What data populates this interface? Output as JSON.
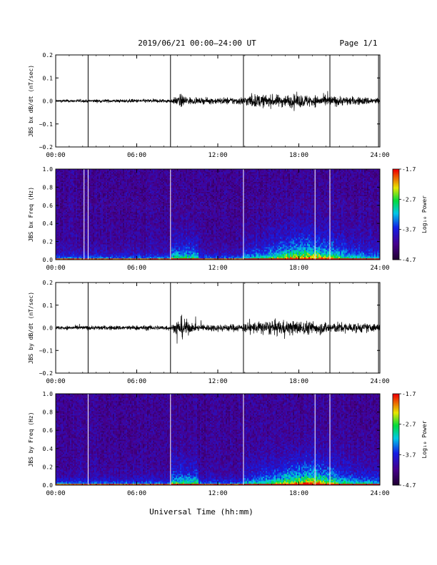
{
  "header": {
    "date_range": "2019/06/21  00:00–24:00 UT",
    "page": "Page 1/1"
  },
  "chart_data": [
    {
      "type": "line",
      "ylabel": "JBS bx dB/dt (nT/sec)",
      "xlim": [
        0,
        24
      ],
      "ylim": [
        -0.2,
        0.2
      ],
      "x_tick_labels": [
        "00:00",
        "06:00",
        "12:00",
        "18:00",
        "24:00"
      ],
      "y_tick_labels": [
        "0.2",
        "0.1",
        "0.0",
        "−0.1",
        "−0.2"
      ],
      "spikes_hours": [
        2.4,
        8.5,
        13.9,
        20.3,
        23.9
      ],
      "spike_range": [
        -0.2,
        0.2
      ],
      "activity": [
        [
          0,
          0.004
        ],
        [
          8.6,
          0.006
        ],
        [
          9.2,
          0.02
        ],
        [
          10.3,
          0.008
        ],
        [
          13.8,
          0.012
        ],
        [
          14.5,
          0.02
        ],
        [
          16,
          0.018
        ],
        [
          18,
          0.02
        ],
        [
          20,
          0.016
        ],
        [
          24,
          0.01
        ]
      ]
    },
    {
      "type": "heatmap",
      "ylabel": "JBS bx Freq (Hz)",
      "xlim": [
        0,
        24
      ],
      "ylim": [
        0,
        1.0
      ],
      "x_tick_labels": [
        "00:00",
        "06:00",
        "12:00",
        "18:00",
        "24:00"
      ],
      "y_tick_labels": [
        "1.0",
        "0.8",
        "0.6",
        "0.4",
        "0.2",
        "0.0"
      ],
      "colorbar": {
        "label": "Log₁₀ Power",
        "range": [
          -4.7,
          -1.7
        ],
        "tick_labels": [
          "-1.7",
          "-2.7",
          "-3.7",
          "-4.7"
        ]
      },
      "white_lines_hours": [
        2.1,
        2.4,
        8.5,
        13.9,
        19.2,
        20.3
      ]
    },
    {
      "type": "line",
      "ylabel": "JBS by dB/dt (nT/sec)",
      "xlim": [
        0,
        24
      ],
      "ylim": [
        -0.2,
        0.2
      ],
      "x_tick_labels": [
        "00:00",
        "06:00",
        "12:00",
        "18:00",
        "24:00"
      ],
      "y_tick_labels": [
        "0.2",
        "0.1",
        "0.0",
        "−0.1",
        "−0.2"
      ],
      "spikes_hours": [
        2.4,
        8.5,
        13.9,
        20.3,
        23.9
      ],
      "spike_range": [
        -0.2,
        0.2
      ],
      "activity": [
        [
          0,
          0.006
        ],
        [
          8.6,
          0.008
        ],
        [
          9.3,
          0.035
        ],
        [
          10.2,
          0.01
        ],
        [
          13.8,
          0.012
        ],
        [
          14.5,
          0.018
        ],
        [
          16,
          0.022
        ],
        [
          18,
          0.022
        ],
        [
          20,
          0.018
        ],
        [
          24,
          0.012
        ]
      ]
    },
    {
      "type": "heatmap",
      "ylabel": "JBS by Freq (Hz)",
      "xlim": [
        0,
        24
      ],
      "ylim": [
        0,
        1.0
      ],
      "x_tick_labels": [
        "00:00",
        "06:00",
        "12:00",
        "18:00",
        "24:00"
      ],
      "y_tick_labels": [
        "1.0",
        "0.8",
        "0.6",
        "0.4",
        "0.2",
        "0.0"
      ],
      "colorbar": {
        "label": "Log₁₀ Power",
        "range": [
          -4.7,
          -1.7
        ],
        "tick_labels": [
          "-1.7",
          "-2.7",
          "-3.7",
          "-4.7"
        ]
      },
      "white_lines_hours": [
        2.4,
        8.5,
        13.9,
        19.2,
        20.3
      ]
    }
  ],
  "footer": {
    "xlabel": "Universal Time (hh:mm)"
  }
}
